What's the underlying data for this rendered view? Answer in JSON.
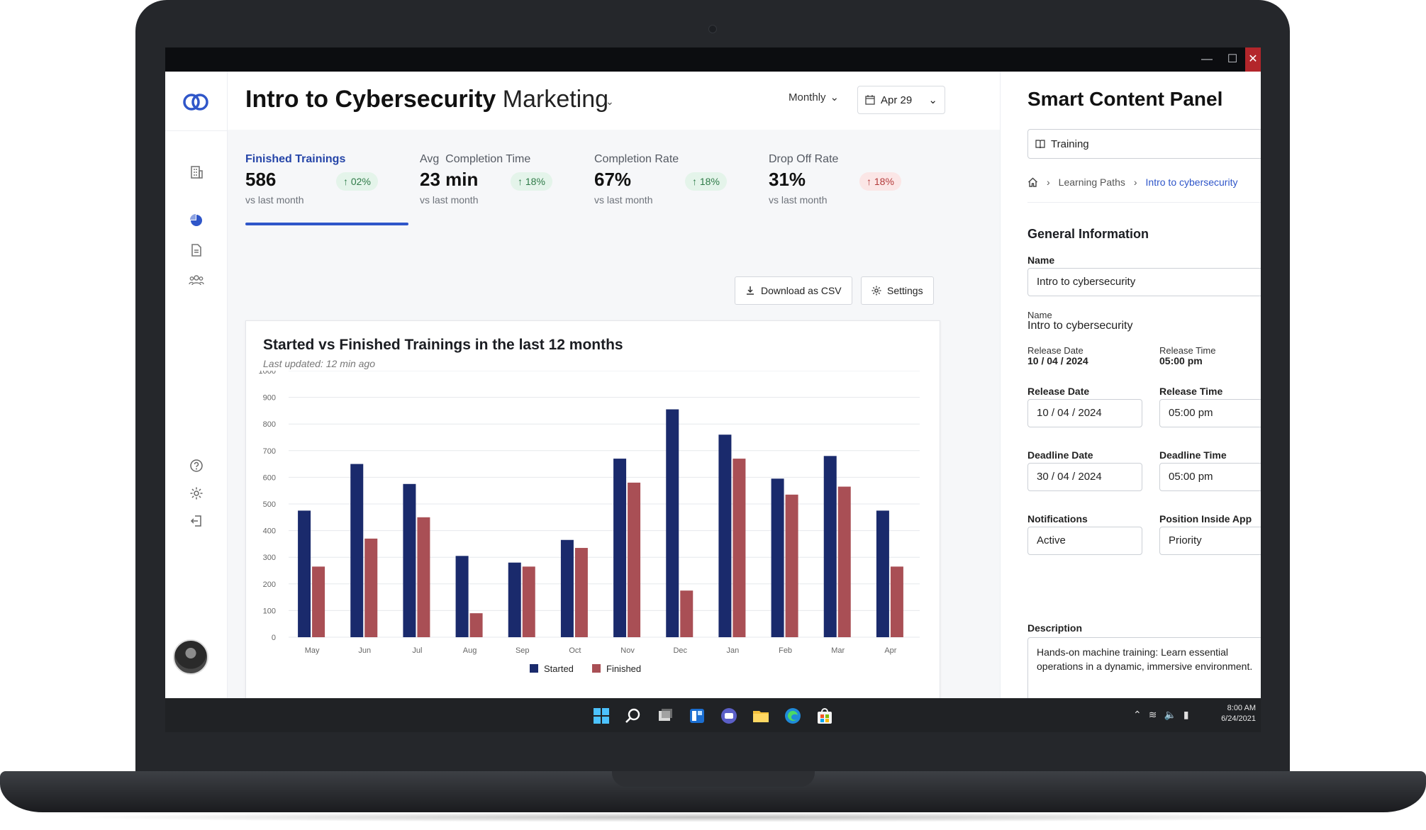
{
  "header": {
    "title": "Intro to Cybersecurity",
    "subtitle": "Marketing",
    "period": "Monthly",
    "date": "Apr 29"
  },
  "kpis": [
    {
      "label": "Finished Trainings",
      "value": "586",
      "delta": "02%",
      "direction": "up",
      "sub": "vs last month"
    },
    {
      "label": "Avg  Completion Time",
      "value": "23 min",
      "delta": "18%",
      "direction": "up",
      "sub": "vs last month"
    },
    {
      "label": "Completion Rate",
      "value": "67%",
      "delta": "18%",
      "direction": "up",
      "sub": "vs last month"
    },
    {
      "label": "Drop Off Rate",
      "value": "31%",
      "delta": "18%",
      "direction": "down",
      "sub": "vs last month"
    }
  ],
  "actions": {
    "download": "Download as CSV",
    "settings": "Settings"
  },
  "chart_data": {
    "type": "bar",
    "title": "Started vs Finished Trainings in the last 12 months",
    "subtitle": "Last updated: 12 min ago",
    "categories": [
      "May",
      "Jun",
      "Jul",
      "Aug",
      "Sep",
      "Oct",
      "Nov",
      "Dec",
      "Jan",
      "Feb",
      "Mar",
      "Apr"
    ],
    "series": [
      {
        "name": "Started",
        "color": "#1a2a6c",
        "values": [
          475,
          650,
          575,
          305,
          280,
          365,
          670,
          855,
          760,
          595,
          680,
          475
        ]
      },
      {
        "name": "Finished",
        "color": "#a94f55",
        "values": [
          265,
          370,
          450,
          90,
          265,
          335,
          580,
          175,
          670,
          535,
          565,
          265
        ]
      }
    ],
    "ylim": [
      0,
      1000
    ],
    "yticks": [
      "0",
      "100",
      "200",
      "300",
      "400",
      "500",
      "600",
      "700",
      "800",
      "900",
      "1000"
    ],
    "grid": true,
    "legend": "bottom"
  },
  "panel": {
    "title": "Smart Content Panel",
    "select": "Training",
    "breadcrumb": [
      "Learning Paths",
      "Intro to cybersecurity"
    ],
    "section": "General Information",
    "name_label": "Name",
    "name_value": "Intro to cybersecurity",
    "name_label2": "Name",
    "name_value2": "Intro to cybersecurity",
    "release_date_label_small": "Release Date",
    "release_date_small": "10 / 04 / 2024",
    "release_time_label_small": "Release Time",
    "release_time_small": "05:00 pm",
    "release_date_label": "Release Date",
    "release_date": "10 / 04 / 2024",
    "release_time_label": "Release Time",
    "release_time": "05:00 pm",
    "deadline_date_label": "Deadline Date",
    "deadline_date": "30 / 04 / 2024",
    "deadline_time_label": "Deadline Time",
    "deadline_time": "05:00 pm",
    "notifications_label": "Notifications",
    "notifications": "Active",
    "position_label": "Position Inside App",
    "position": "Priority",
    "description_label": "Description",
    "description": "Hands-on machine training: Learn essential operations in a dynamic, immersive environment."
  },
  "taskbar": {
    "time": "8:00 AM",
    "date": "6/24/2021"
  }
}
